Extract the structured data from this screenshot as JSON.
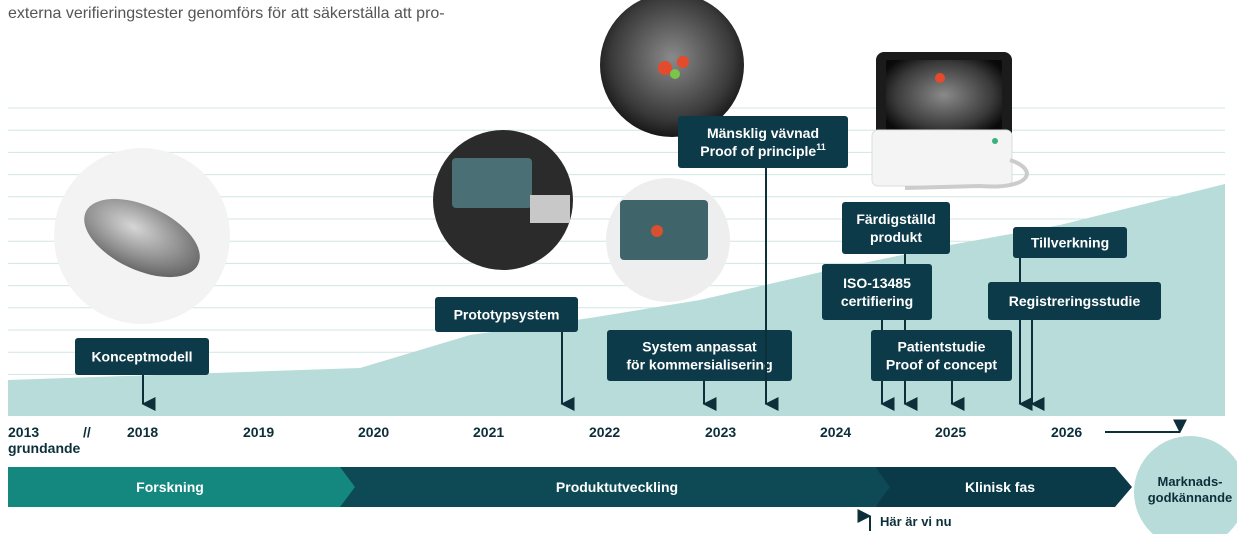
{
  "header": {
    "text": "externa verifieringstester genomförs för att säkerställa att pro-"
  },
  "timeline": {
    "years": [
      "2013",
      "//",
      "2018",
      "2019",
      "2020",
      "2021",
      "2022",
      "2023",
      "2024",
      "2025",
      "2026"
    ],
    "founding_note": "grundande"
  },
  "milestones": [
    {
      "lines": [
        "Konceptmodell"
      ]
    },
    {
      "lines": [
        "Prototypsystem"
      ]
    },
    {
      "lines": [
        "System anpassat",
        "för kommersialisering"
      ]
    },
    {
      "lines": [
        "Mänsklig vävnad",
        "Proof of principle"
      ],
      "superscript": "11"
    },
    {
      "lines": [
        "Färdigställd",
        "produkt"
      ]
    },
    {
      "lines": [
        "ISO-13485",
        "certifiering"
      ]
    },
    {
      "lines": [
        "Patientstudie",
        "Proof of concept"
      ]
    },
    {
      "lines": [
        "Tillverkning"
      ]
    },
    {
      "lines": [
        "Registreringsstudie"
      ]
    }
  ],
  "phases": [
    "Forskning",
    "Produktutveckling",
    "Klinisk fas"
  ],
  "market_approval": {
    "lines": [
      "Marknads-",
      "godkännande"
    ]
  },
  "current_marker": "Här är vi nu"
}
